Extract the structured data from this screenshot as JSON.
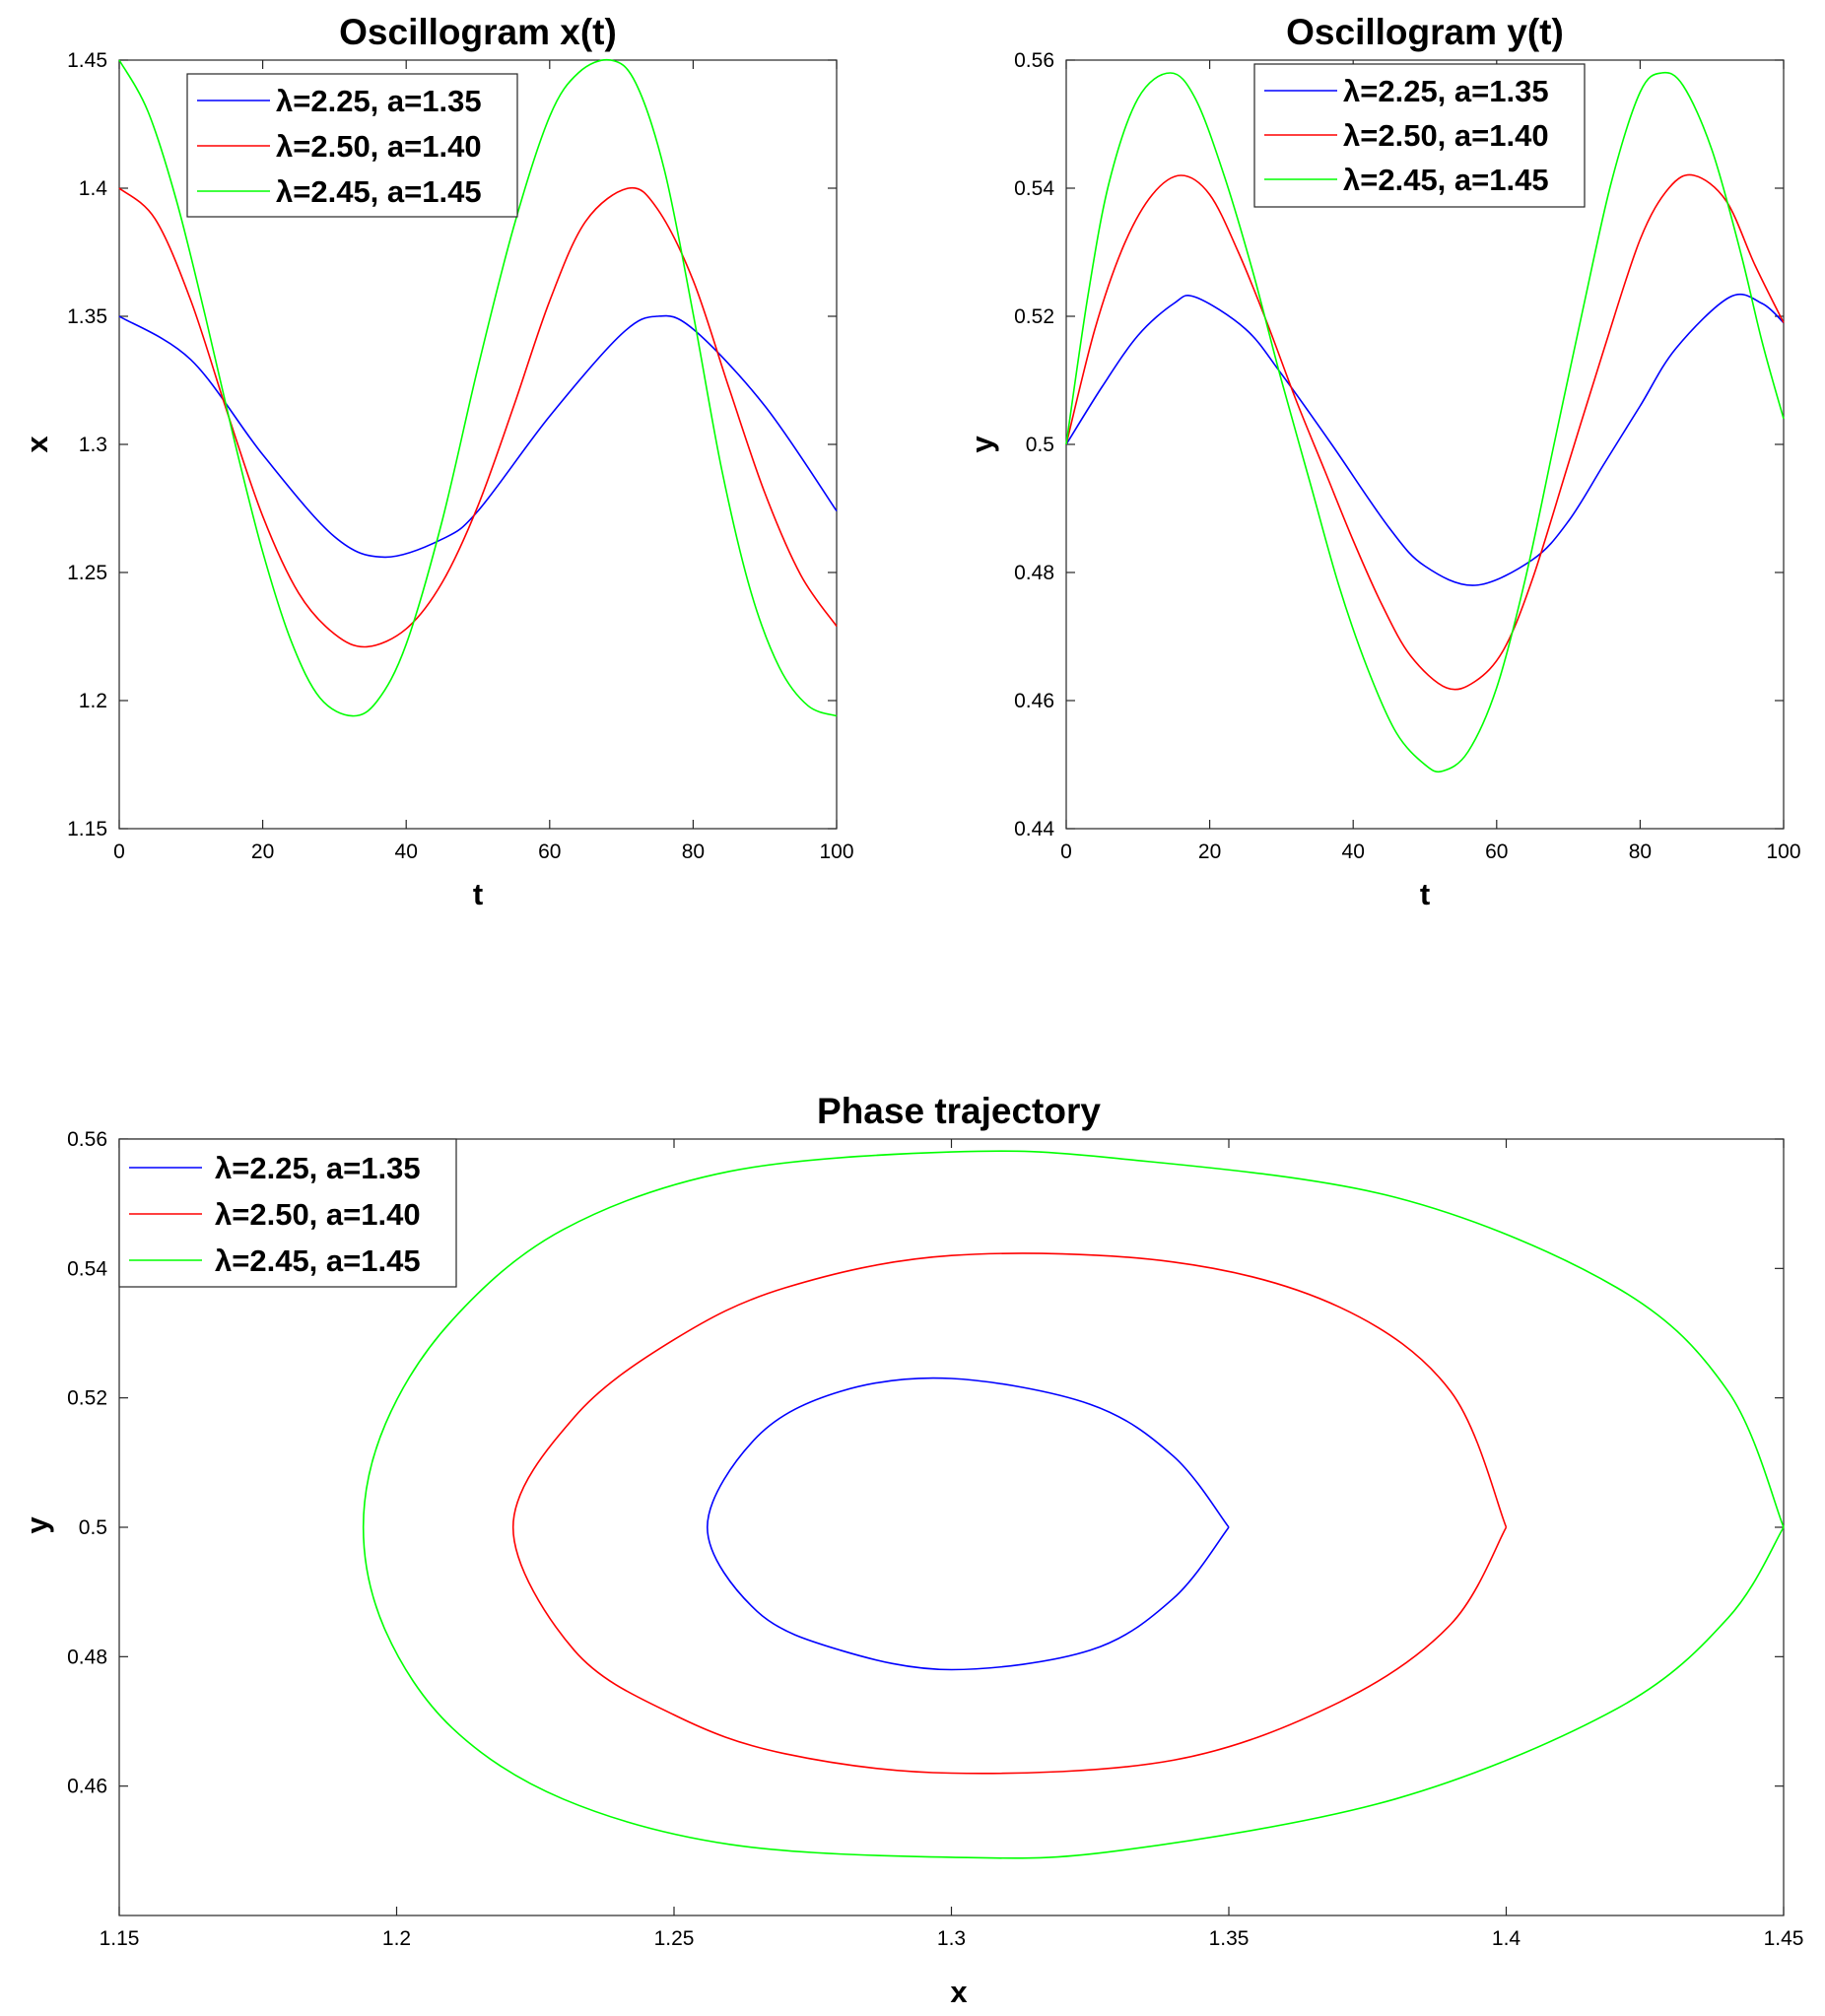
{
  "figure": {
    "description_free": true
  },
  "chart_data": [
    {
      "type": "line",
      "title": "Oscillogram x(t)",
      "xlabel": "t",
      "ylabel": "x",
      "xlim": [
        0,
        100
      ],
      "ylim": [
        1.15,
        1.45
      ],
      "xticks": [
        0,
        20,
        40,
        60,
        80,
        100
      ],
      "xticklabels": [
        "0",
        "20",
        "40",
        "60",
        "80",
        "100"
      ],
      "yticks": [
        1.15,
        1.2,
        1.25,
        1.3,
        1.35,
        1.4,
        1.45
      ],
      "yticklabels": [
        "1.15",
        "1.2",
        "1.25",
        "1.3",
        "1.35",
        "1.4",
        "1.45"
      ],
      "legend_position": "top-left",
      "series": [
        {
          "name": "λ=2.25, a=1.35",
          "color": "#0000ff",
          "x": [
            0,
            10,
            20,
            30,
            37,
            45,
            50,
            60,
            70,
            75,
            80,
            90,
            100
          ],
          "y": [
            1.35,
            1.333,
            1.296,
            1.264,
            1.256,
            1.263,
            1.274,
            1.311,
            1.343,
            1.35,
            1.345,
            1.315,
            1.274
          ]
        },
        {
          "name": "λ=2.50, a=1.40",
          "color": "#ff0000",
          "x": [
            0,
            5,
            10,
            15,
            20,
            25,
            30,
            34.5,
            40,
            45,
            50,
            55,
            60,
            65,
            71,
            75,
            80,
            85,
            90,
            95,
            100
          ],
          "y": [
            1.4,
            1.388,
            1.356,
            1.313,
            1.272,
            1.242,
            1.226,
            1.221,
            1.228,
            1.246,
            1.276,
            1.315,
            1.356,
            1.387,
            1.4,
            1.392,
            1.364,
            1.322,
            1.281,
            1.249,
            1.229
          ]
        },
        {
          "name": "λ=2.45, a=1.45",
          "color": "#00ff00",
          "x": [
            0,
            4,
            8,
            12,
            16,
            20,
            24,
            28,
            32.5,
            36,
            40,
            45,
            50,
            55,
            60,
            64,
            68.5,
            72,
            76,
            80,
            84,
            88,
            92,
            96,
            100
          ],
          "y": [
            1.45,
            1.43,
            1.395,
            1.35,
            1.302,
            1.258,
            1.223,
            1.201,
            1.194,
            1.2,
            1.222,
            1.27,
            1.33,
            1.385,
            1.428,
            1.445,
            1.45,
            1.441,
            1.407,
            1.351,
            1.29,
            1.243,
            1.213,
            1.198,
            1.194
          ]
        }
      ]
    },
    {
      "type": "line",
      "title": "Oscillogram y(t)",
      "xlabel": "t",
      "ylabel": "y",
      "xlim": [
        0,
        100
      ],
      "ylim": [
        0.44,
        0.56
      ],
      "xticks": [
        0,
        20,
        40,
        60,
        80,
        100
      ],
      "xticklabels": [
        "0",
        "20",
        "40",
        "60",
        "80",
        "100"
      ],
      "yticks": [
        0.44,
        0.46,
        0.48,
        0.5,
        0.52,
        0.54,
        0.56
      ],
      "yticklabels": [
        "0.44",
        "0.46",
        "0.48",
        "0.5",
        "0.52",
        "0.54",
        "0.56"
      ],
      "legend_position": "top-right",
      "series": [
        {
          "name": "λ=2.25, a=1.35",
          "color": "#0000ff",
          "x": [
            0,
            5,
            10,
            15,
            18,
            25,
            30,
            37,
            45,
            50,
            57,
            65,
            70,
            75,
            80,
            85,
            92.5,
            97,
            100
          ],
          "y": [
            0.5,
            0.509,
            0.517,
            0.522,
            0.523,
            0.518,
            0.511,
            0.5,
            0.487,
            0.481,
            0.478,
            0.482,
            0.488,
            0.497,
            0.506,
            0.515,
            0.523,
            0.522,
            0.519
          ]
        },
        {
          "name": "λ=2.50, a=1.40",
          "color": "#ff0000",
          "x": [
            0,
            4,
            8,
            12,
            16,
            20,
            24,
            28,
            32,
            36,
            40,
            44,
            48,
            53,
            57,
            61,
            65,
            70,
            75,
            80,
            84,
            87.5,
            92,
            96,
            100
          ],
          "y": [
            0.5,
            0.518,
            0.531,
            0.539,
            0.542,
            0.539,
            0.53,
            0.519,
            0.507,
            0.496,
            0.485,
            0.475,
            0.467,
            0.462,
            0.463,
            0.468,
            0.479,
            0.497,
            0.515,
            0.532,
            0.54,
            0.542,
            0.538,
            0.528,
            0.519
          ]
        },
        {
          "name": "λ=2.45, a=1.45",
          "color": "#00ff00",
          "x": [
            0,
            3,
            6,
            10,
            14.5,
            18,
            22,
            26,
            30,
            34,
            38,
            42,
            46,
            50,
            52.5,
            56,
            60,
            64,
            68,
            72,
            76,
            80,
            83,
            86,
            90,
            94,
            97,
            100
          ],
          "y": [
            0.5,
            0.523,
            0.541,
            0.554,
            0.558,
            0.554,
            0.542,
            0.527,
            0.51,
            0.494,
            0.478,
            0.465,
            0.455,
            0.45,
            0.449,
            0.452,
            0.462,
            0.479,
            0.5,
            0.521,
            0.541,
            0.555,
            0.558,
            0.556,
            0.546,
            0.53,
            0.516,
            0.504
          ]
        }
      ]
    },
    {
      "type": "line",
      "title": "Phase trajectory",
      "xlabel": "x",
      "ylabel": "y",
      "xlim": [
        1.15,
        1.45
      ],
      "ylim": [
        0.44,
        0.56
      ],
      "xticks": [
        1.15,
        1.2,
        1.25,
        1.3,
        1.35,
        1.4,
        1.45
      ],
      "xticklabels": [
        "1.15",
        "1.2",
        "1.25",
        "1.3",
        "1.35",
        "1.4",
        "1.45"
      ],
      "yticks": [
        0.46,
        0.48,
        0.5,
        0.52,
        0.54,
        0.56
      ],
      "yticklabels": [
        "0.46",
        "0.48",
        "0.5",
        "0.52",
        "0.54",
        "0.56"
      ],
      "legend_position": "top-left",
      "series": [
        {
          "name": "λ=2.25, a=1.35",
          "color": "#0000ff",
          "closed": true,
          "x": [
            1.35,
            1.34,
            1.325,
            1.3,
            1.28,
            1.265,
            1.256,
            1.265,
            1.28,
            1.3,
            1.325,
            1.34,
            1.35
          ],
          "y": [
            0.5,
            0.511,
            0.519,
            0.523,
            0.521,
            0.514,
            0.5,
            0.487,
            0.481,
            0.478,
            0.481,
            0.489,
            0.5
          ]
        },
        {
          "name": "λ=2.50, a=1.40",
          "color": "#ff0000",
          "closed": true,
          "x": [
            1.4,
            1.39,
            1.37,
            1.34,
            1.3,
            1.27,
            1.25,
            1.232,
            1.221,
            1.232,
            1.25,
            1.27,
            1.3,
            1.34,
            1.37,
            1.39,
            1.4
          ],
          "y": [
            0.5,
            0.521,
            0.534,
            0.541,
            0.542,
            0.537,
            0.529,
            0.517,
            0.5,
            0.481,
            0.471,
            0.465,
            0.462,
            0.464,
            0.473,
            0.485,
            0.5
          ]
        },
        {
          "name": "λ=2.45, a=1.45",
          "color": "#00ff00",
          "closed": true,
          "x": [
            1.45,
            1.44,
            1.42,
            1.38,
            1.33,
            1.3,
            1.26,
            1.23,
            1.21,
            1.198,
            1.194,
            1.198,
            1.21,
            1.23,
            1.26,
            1.3,
            1.33,
            1.38,
            1.42,
            1.44,
            1.45
          ],
          "y": [
            0.5,
            0.521,
            0.537,
            0.551,
            0.557,
            0.558,
            0.555,
            0.546,
            0.532,
            0.516,
            0.5,
            0.484,
            0.469,
            0.458,
            0.451,
            0.449,
            0.45,
            0.458,
            0.472,
            0.486,
            0.5
          ]
        }
      ]
    }
  ]
}
